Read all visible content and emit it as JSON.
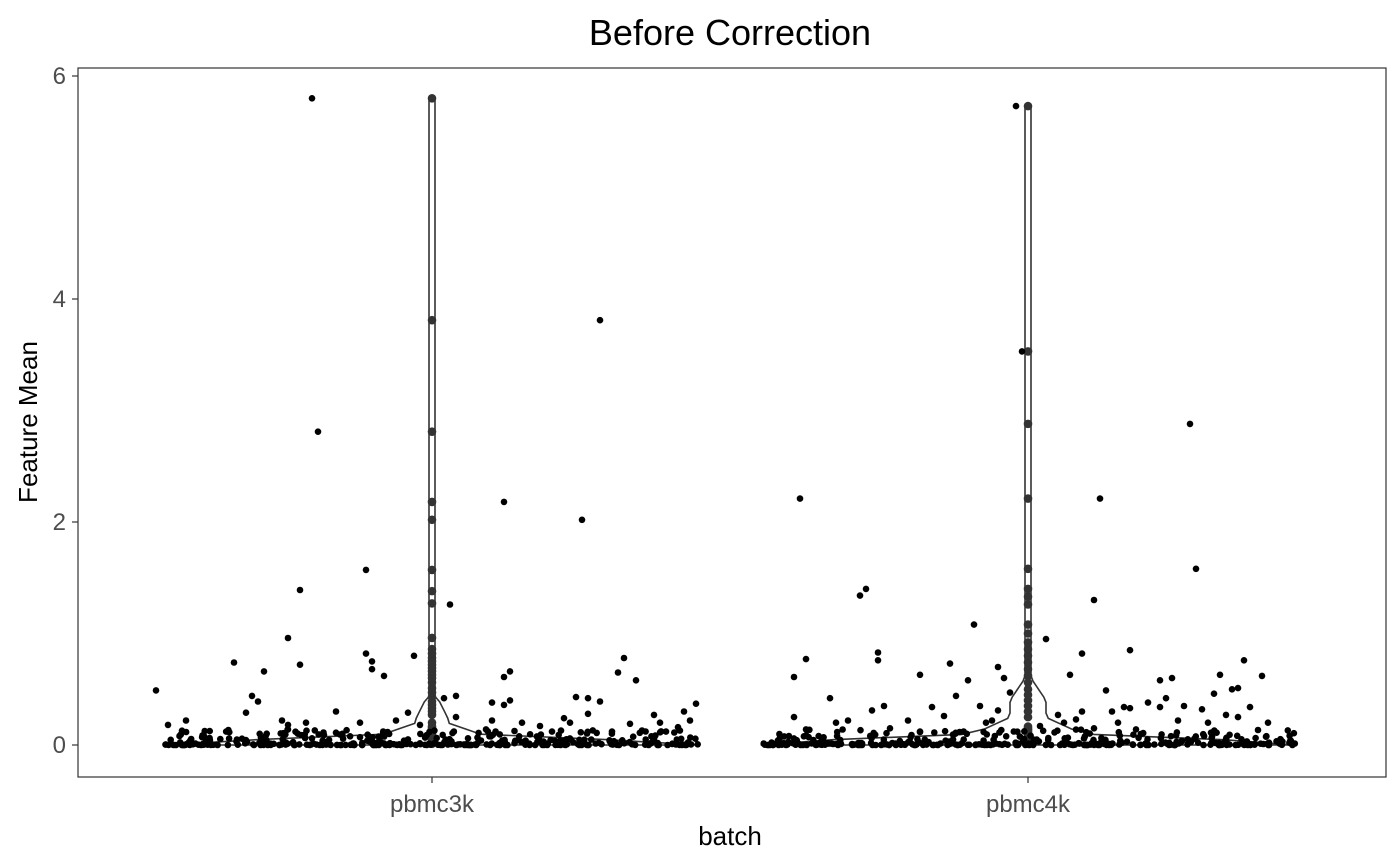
{
  "chart_data": {
    "type": "violin+jitter",
    "title": "Before Correction",
    "xlabel": "batch",
    "ylabel": "Feature Mean",
    "categories": [
      "pbmc3k",
      "pbmc4k"
    ],
    "ylim": [
      -0.28,
      6.1
    ],
    "yticks": [
      0,
      2,
      4,
      6
    ],
    "ytick_labels": [
      "0",
      "2",
      "4",
      "6"
    ],
    "grid": false,
    "colors": {
      "points": "#000000",
      "violin_line": "#333333",
      "panel_border": "#333333",
      "tick_label": "#4d4d4d"
    },
    "series": [
      {
        "category": "pbmc3k",
        "jitter_points": [
          {
            "dx": -0.46,
            "y": 0.49
          },
          {
            "dx": -0.44,
            "y": 0.18
          },
          {
            "dx": -0.41,
            "y": 0.22
          },
          {
            "dx": -0.38,
            "y": 0.08
          },
          {
            "dx": -0.33,
            "y": 0.74
          },
          {
            "dx": -0.31,
            "y": 0.29
          },
          {
            "dx": -0.3,
            "y": 0.44
          },
          {
            "dx": -0.29,
            "y": 0.39
          },
          {
            "dx": -0.28,
            "y": 0.66
          },
          {
            "dx": -0.25,
            "y": 0.22
          },
          {
            "dx": -0.24,
            "y": 0.14
          },
          {
            "dx": -0.2,
            "y": 0.06
          },
          {
            "dx": -0.16,
            "y": 0.11
          },
          {
            "dx": -0.12,
            "y": 0.07
          },
          {
            "dx": -0.24,
            "y": 0.18
          },
          {
            "dx": -0.21,
            "y": 0.2
          },
          {
            "dx": -0.24,
            "y": 0.96
          },
          {
            "dx": -0.22,
            "y": 0.72
          },
          {
            "dx": -0.22,
            "y": 1.39
          },
          {
            "dx": -0.2,
            "y": 5.8
          },
          {
            "dx": -0.19,
            "y": 2.81
          },
          {
            "dx": -0.18,
            "y": 0.09
          },
          {
            "dx": -0.16,
            "y": 0.3
          },
          {
            "dx": -0.12,
            "y": 0.2
          },
          {
            "dx": -0.11,
            "y": 1.57
          },
          {
            "dx": -0.11,
            "y": 0.82
          },
          {
            "dx": -0.1,
            "y": 0.75
          },
          {
            "dx": -0.1,
            "y": 0.68
          },
          {
            "dx": -0.08,
            "y": 0.62
          },
          {
            "dx": -0.06,
            "y": 0.22
          },
          {
            "dx": -0.04,
            "y": 0.29
          },
          {
            "dx": -0.03,
            "y": 0.8
          },
          {
            "dx": -0.02,
            "y": 0.18
          },
          {
            "dx": 0.02,
            "y": 0.42
          },
          {
            "dx": 0.03,
            "y": 1.26
          },
          {
            "dx": 0.04,
            "y": 0.25
          },
          {
            "dx": 0.04,
            "y": 0.44
          },
          {
            "dx": 0.06,
            "y": 0.06
          },
          {
            "dx": 0.09,
            "y": 0.14
          },
          {
            "dx": 0.1,
            "y": 0.22
          },
          {
            "dx": 0.1,
            "y": 0.38
          },
          {
            "dx": 0.12,
            "y": 0.61
          },
          {
            "dx": 0.12,
            "y": 0.36
          },
          {
            "dx": 0.13,
            "y": 0.66
          },
          {
            "dx": 0.13,
            "y": 0.4
          },
          {
            "dx": 0.12,
            "y": 2.18
          },
          {
            "dx": 0.15,
            "y": 0.2
          },
          {
            "dx": 0.18,
            "y": 0.17
          },
          {
            "dx": 0.2,
            "y": 0.12
          },
          {
            "dx": 0.22,
            "y": 0.24
          },
          {
            "dx": 0.23,
            "y": 0.2
          },
          {
            "dx": 0.24,
            "y": 0.43
          },
          {
            "dx": 0.25,
            "y": 2.02
          },
          {
            "dx": 0.26,
            "y": 0.42
          },
          {
            "dx": 0.26,
            "y": 0.28
          },
          {
            "dx": 0.28,
            "y": 3.81
          },
          {
            "dx": 0.28,
            "y": 0.39
          },
          {
            "dx": 0.3,
            "y": 0.12
          },
          {
            "dx": 0.31,
            "y": 0.65
          },
          {
            "dx": 0.32,
            "y": 0.78
          },
          {
            "dx": 0.33,
            "y": 0.19
          },
          {
            "dx": 0.34,
            "y": 0.58
          },
          {
            "dx": 0.35,
            "y": 0.13
          },
          {
            "dx": 0.37,
            "y": 0.27
          },
          {
            "dx": 0.38,
            "y": 0.2
          },
          {
            "dx": 0.39,
            "y": 0.12
          },
          {
            "dx": 0.41,
            "y": 0.16
          },
          {
            "dx": 0.42,
            "y": 0.3
          },
          {
            "dx": 0.43,
            "y": 0.22
          },
          {
            "dx": 0.44,
            "y": 0.37
          }
        ],
        "axis_points": [
          0.2,
          0.27,
          0.3,
          0.33,
          0.36,
          0.39,
          0.43,
          0.47,
          0.51,
          0.56,
          0.6,
          0.63,
          0.66,
          0.69,
          0.72,
          0.75,
          0.78,
          0.82,
          0.86,
          0.96,
          1.27,
          1.38,
          1.57,
          2.02,
          2.18,
          2.81,
          3.81,
          5.8
        ]
      },
      {
        "category": "pbmc4k",
        "jitter_points": [
          {
            "dx": -0.39,
            "y": 0.61
          },
          {
            "dx": -0.39,
            "y": 0.25
          },
          {
            "dx": -0.38,
            "y": 2.21
          },
          {
            "dx": -0.37,
            "y": 0.77
          },
          {
            "dx": -0.37,
            "y": 0.14
          },
          {
            "dx": -0.33,
            "y": 0.42
          },
          {
            "dx": -0.32,
            "y": 0.2
          },
          {
            "dx": -0.3,
            "y": 0.22
          },
          {
            "dx": -0.28,
            "y": 1.34
          },
          {
            "dx": -0.27,
            "y": 1.4
          },
          {
            "dx": -0.26,
            "y": 0.31
          },
          {
            "dx": -0.25,
            "y": 0.83
          },
          {
            "dx": -0.25,
            "y": 0.76
          },
          {
            "dx": -0.24,
            "y": 0.35
          },
          {
            "dx": -0.23,
            "y": 0.15
          },
          {
            "dx": -0.2,
            "y": 0.22
          },
          {
            "dx": -0.18,
            "y": 0.63
          },
          {
            "dx": -0.16,
            "y": 0.34
          },
          {
            "dx": -0.18,
            "y": 0.12
          },
          {
            "dx": -0.14,
            "y": 0.26
          },
          {
            "dx": -0.13,
            "y": 0.73
          },
          {
            "dx": -0.12,
            "y": 0.44
          },
          {
            "dx": -0.1,
            "y": 0.58
          },
          {
            "dx": -0.09,
            "y": 1.08
          },
          {
            "dx": -0.08,
            "y": 0.35
          },
          {
            "dx": -0.07,
            "y": 0.2
          },
          {
            "dx": -0.06,
            "y": 0.22
          },
          {
            "dx": -0.05,
            "y": 0.31
          },
          {
            "dx": -0.05,
            "y": 0.7
          },
          {
            "dx": -0.04,
            "y": 0.6
          },
          {
            "dx": -0.03,
            "y": 0.47
          },
          {
            "dx": -0.02,
            "y": 5.73
          },
          {
            "dx": -0.01,
            "y": 3.53
          },
          {
            "dx": 0.02,
            "y": 0.17
          },
          {
            "dx": 0.03,
            "y": 0.95
          },
          {
            "dx": 0.05,
            "y": 0.27
          },
          {
            "dx": 0.06,
            "y": 0.2
          },
          {
            "dx": 0.07,
            "y": 0.63
          },
          {
            "dx": 0.08,
            "y": 0.23
          },
          {
            "dx": 0.09,
            "y": 0.82
          },
          {
            "dx": 0.09,
            "y": 0.3
          },
          {
            "dx": 0.11,
            "y": 1.3
          },
          {
            "dx": 0.11,
            "y": 0.15
          },
          {
            "dx": 0.12,
            "y": 2.21
          },
          {
            "dx": 0.13,
            "y": 0.49
          },
          {
            "dx": 0.14,
            "y": 0.3
          },
          {
            "dx": 0.15,
            "y": 0.2
          },
          {
            "dx": 0.16,
            "y": 0.34
          },
          {
            "dx": 0.17,
            "y": 0.85
          },
          {
            "dx": 0.17,
            "y": 0.33
          },
          {
            "dx": 0.18,
            "y": 0.14
          },
          {
            "dx": 0.2,
            "y": 0.38
          },
          {
            "dx": 0.22,
            "y": 0.58
          },
          {
            "dx": 0.22,
            "y": 0.34
          },
          {
            "dx": 0.23,
            "y": 0.42
          },
          {
            "dx": 0.24,
            "y": 0.6
          },
          {
            "dx": 0.25,
            "y": 0.22
          },
          {
            "dx": 0.26,
            "y": 0.35
          },
          {
            "dx": 0.27,
            "y": 2.88
          },
          {
            "dx": 0.28,
            "y": 1.58
          },
          {
            "dx": 0.29,
            "y": 0.32
          },
          {
            "dx": 0.3,
            "y": 0.2
          },
          {
            "dx": 0.31,
            "y": 0.46
          },
          {
            "dx": 0.32,
            "y": 0.63
          },
          {
            "dx": 0.33,
            "y": 0.27
          },
          {
            "dx": 0.34,
            "y": 0.5
          },
          {
            "dx": 0.35,
            "y": 0.25
          },
          {
            "dx": 0.36,
            "y": 0.76
          },
          {
            "dx": 0.37,
            "y": 0.34
          },
          {
            "dx": 0.39,
            "y": 0.62
          },
          {
            "dx": 0.4,
            "y": 0.2
          },
          {
            "dx": 0.35,
            "y": 0.51
          }
        ],
        "axis_points": [
          0.25,
          0.3,
          0.35,
          0.4,
          0.45,
          0.5,
          0.56,
          0.62,
          0.68,
          0.74,
          0.8,
          0.86,
          0.92,
          1.0,
          1.08,
          1.26,
          1.33,
          1.4,
          1.58,
          2.21,
          2.88,
          3.53,
          5.73
        ]
      }
    ]
  }
}
